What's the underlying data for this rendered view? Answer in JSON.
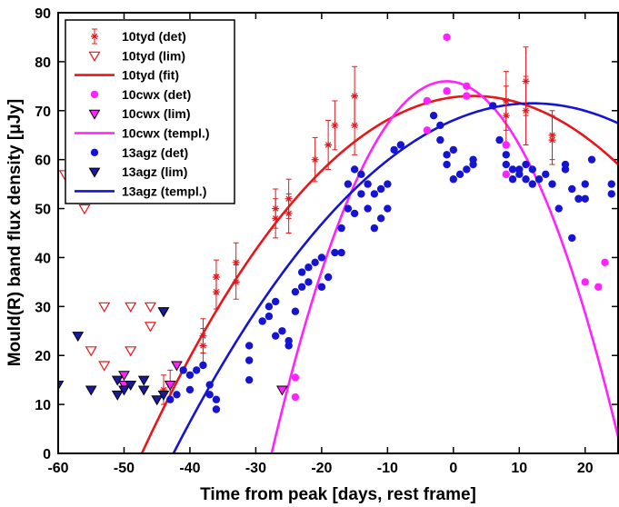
{
  "chart_data": {
    "type": "scatter",
    "xlabel": "Time from peak [days, rest frame]",
    "ylabel": "Mould(R) band flux density [μJy]",
    "xlim": [
      -60,
      25
    ],
    "ylim": [
      0,
      90
    ],
    "xticks": [
      -60,
      -50,
      -40,
      -30,
      -20,
      -10,
      0,
      10,
      20
    ],
    "yticks": [
      0,
      10,
      20,
      30,
      40,
      50,
      60,
      70,
      80,
      90
    ],
    "legend_position": "top-left",
    "series": [
      {
        "name": "10tyd (det)",
        "kind": "errorbar",
        "color": "#e8161b",
        "marker": "asterisk",
        "points": [
          [
            -44,
            13,
            3
          ],
          [
            -43,
            14,
            3
          ],
          [
            -38,
            22,
            3.5
          ],
          [
            -38,
            24,
            3.5
          ],
          [
            -36,
            33,
            3.5
          ],
          [
            -36,
            36,
            3.5
          ],
          [
            -33,
            35,
            3.5
          ],
          [
            -33,
            39,
            4
          ],
          [
            -27,
            48,
            4
          ],
          [
            -27,
            50,
            4
          ],
          [
            -25,
            49,
            4
          ],
          [
            -25,
            52,
            4
          ],
          [
            -21,
            60,
            4.5
          ],
          [
            -19,
            63,
            5
          ],
          [
            -18,
            67,
            5
          ],
          [
            -15,
            67,
            6
          ],
          [
            -15,
            73,
            6
          ],
          [
            8,
            72,
            6
          ],
          [
            8,
            69,
            6
          ],
          [
            11,
            70,
            7
          ],
          [
            11,
            76,
            7
          ],
          [
            15,
            64,
            5
          ],
          [
            15,
            65,
            5
          ]
        ]
      },
      {
        "name": "10tyd (lim)",
        "kind": "scatter",
        "color": "#e8161b",
        "marker": "triangle-down-open",
        "points": [
          [
            -59,
            57
          ],
          [
            -56,
            50
          ],
          [
            -55,
            21
          ],
          [
            -53,
            30
          ],
          [
            -53,
            18
          ],
          [
            -49,
            30
          ],
          [
            -49,
            21
          ],
          [
            -46,
            30
          ],
          [
            -46,
            26
          ]
        ]
      },
      {
        "name": "10tyd (fit)",
        "kind": "line",
        "color": "#e8161b",
        "peak": 73,
        "peak_x": 3,
        "x_from": -47.3,
        "x_to": 25
      },
      {
        "name": "10cwx (det)",
        "kind": "scatter",
        "color": "#ff22ff",
        "marker": "circle",
        "points": [
          [
            -24,
            15.5
          ],
          [
            -24,
            11.5
          ],
          [
            -20,
            34
          ],
          [
            -4,
            66
          ],
          [
            -4,
            72
          ],
          [
            -1,
            85
          ],
          [
            -1,
            74
          ],
          [
            2,
            75
          ],
          [
            2,
            73
          ],
          [
            8,
            57
          ],
          [
            8,
            63
          ],
          [
            20,
            35
          ],
          [
            22,
            34
          ],
          [
            23,
            39
          ]
        ]
      },
      {
        "name": "10cwx (lim)",
        "kind": "scatter",
        "color": "#ff22ff",
        "marker": "triangle-down-filled",
        "points": [
          [
            -42,
            18
          ],
          [
            -43,
            14
          ],
          [
            -50,
            14
          ],
          [
            -50,
            16
          ],
          [
            -44,
            29
          ],
          [
            -26,
            13
          ]
        ]
      },
      {
        "name": "10cwx (templ.)",
        "kind": "line",
        "color": "#ff22ff",
        "peak": 76,
        "peak_x": -1,
        "x_from": -27.6,
        "x_to": 25
      },
      {
        "name": "13agz (det)",
        "kind": "scatter",
        "color": "#1414d2",
        "marker": "circle",
        "points": [
          [
            -43,
            11
          ],
          [
            -42,
            12
          ],
          [
            -41,
            17
          ],
          [
            -40,
            13
          ],
          [
            -40,
            16
          ],
          [
            -39,
            17
          ],
          [
            -38,
            18
          ],
          [
            -37,
            14
          ],
          [
            -37,
            12
          ],
          [
            -36,
            9
          ],
          [
            -36,
            11
          ],
          [
            -31,
            22
          ],
          [
            -31,
            19
          ],
          [
            -31,
            15
          ],
          [
            -29,
            27
          ],
          [
            -28,
            28
          ],
          [
            -28,
            30
          ],
          [
            -27,
            31
          ],
          [
            -27,
            24
          ],
          [
            -26,
            25
          ],
          [
            -25,
            23
          ],
          [
            -25,
            22
          ],
          [
            -24,
            29
          ],
          [
            -24,
            33
          ],
          [
            -23,
            34
          ],
          [
            -23,
            37
          ],
          [
            -22,
            38
          ],
          [
            -22,
            35
          ],
          [
            -21,
            39
          ],
          [
            -20,
            40
          ],
          [
            -20,
            34
          ],
          [
            -19,
            36
          ],
          [
            -18,
            41
          ],
          [
            -17,
            41
          ],
          [
            -17,
            46
          ],
          [
            -16,
            50
          ],
          [
            -16,
            55
          ],
          [
            -15,
            49
          ],
          [
            -15,
            58
          ],
          [
            -14,
            53
          ],
          [
            -14,
            57
          ],
          [
            -13,
            55
          ],
          [
            -13,
            50
          ],
          [
            -12,
            46
          ],
          [
            -12,
            53
          ],
          [
            -11,
            54
          ],
          [
            -11,
            48
          ],
          [
            -10,
            50
          ],
          [
            -10,
            55
          ],
          [
            -9,
            62
          ],
          [
            -8,
            63
          ],
          [
            -3,
            69
          ],
          [
            -2,
            67
          ],
          [
            -2,
            64
          ],
          [
            -1,
            61
          ],
          [
            -1,
            59
          ],
          [
            0,
            56
          ],
          [
            0,
            62
          ],
          [
            1,
            57
          ],
          [
            2,
            58
          ],
          [
            3,
            59
          ],
          [
            3,
            60
          ],
          [
            6,
            71
          ],
          [
            7,
            64
          ],
          [
            8,
            59
          ],
          [
            8,
            61
          ],
          [
            9,
            58
          ],
          [
            9,
            56
          ],
          [
            10,
            58
          ],
          [
            10,
            57
          ],
          [
            11,
            59
          ],
          [
            11,
            56
          ],
          [
            12,
            55
          ],
          [
            12,
            58
          ],
          [
            13,
            56
          ],
          [
            14,
            57
          ],
          [
            15,
            55
          ],
          [
            16,
            50
          ],
          [
            17,
            59
          ],
          [
            17,
            58
          ],
          [
            18,
            44
          ],
          [
            18,
            54
          ],
          [
            19,
            52
          ],
          [
            19,
            52
          ],
          [
            20,
            52
          ],
          [
            20,
            55
          ],
          [
            21,
            60
          ],
          [
            24,
            55
          ],
          [
            24,
            53
          ]
        ]
      },
      {
        "name": "13agz (lim)",
        "kind": "scatter",
        "color": "#1a1aa0",
        "marker": "triangle-down-filled",
        "points": [
          [
            -60,
            14
          ],
          [
            -57,
            24
          ],
          [
            -55,
            13
          ],
          [
            -51,
            15
          ],
          [
            -51,
            12
          ],
          [
            -50,
            13
          ],
          [
            -49,
            14
          ],
          [
            -47,
            15
          ],
          [
            -47,
            13
          ],
          [
            -45,
            11
          ],
          [
            -44,
            12
          ],
          [
            -44,
            29
          ]
        ]
      },
      {
        "name": "13agz (templ.)",
        "kind": "line",
        "color": "#1414d2",
        "peak": 71.5,
        "peak_x": 12,
        "x_from": -42.5,
        "x_to": 25
      }
    ]
  }
}
